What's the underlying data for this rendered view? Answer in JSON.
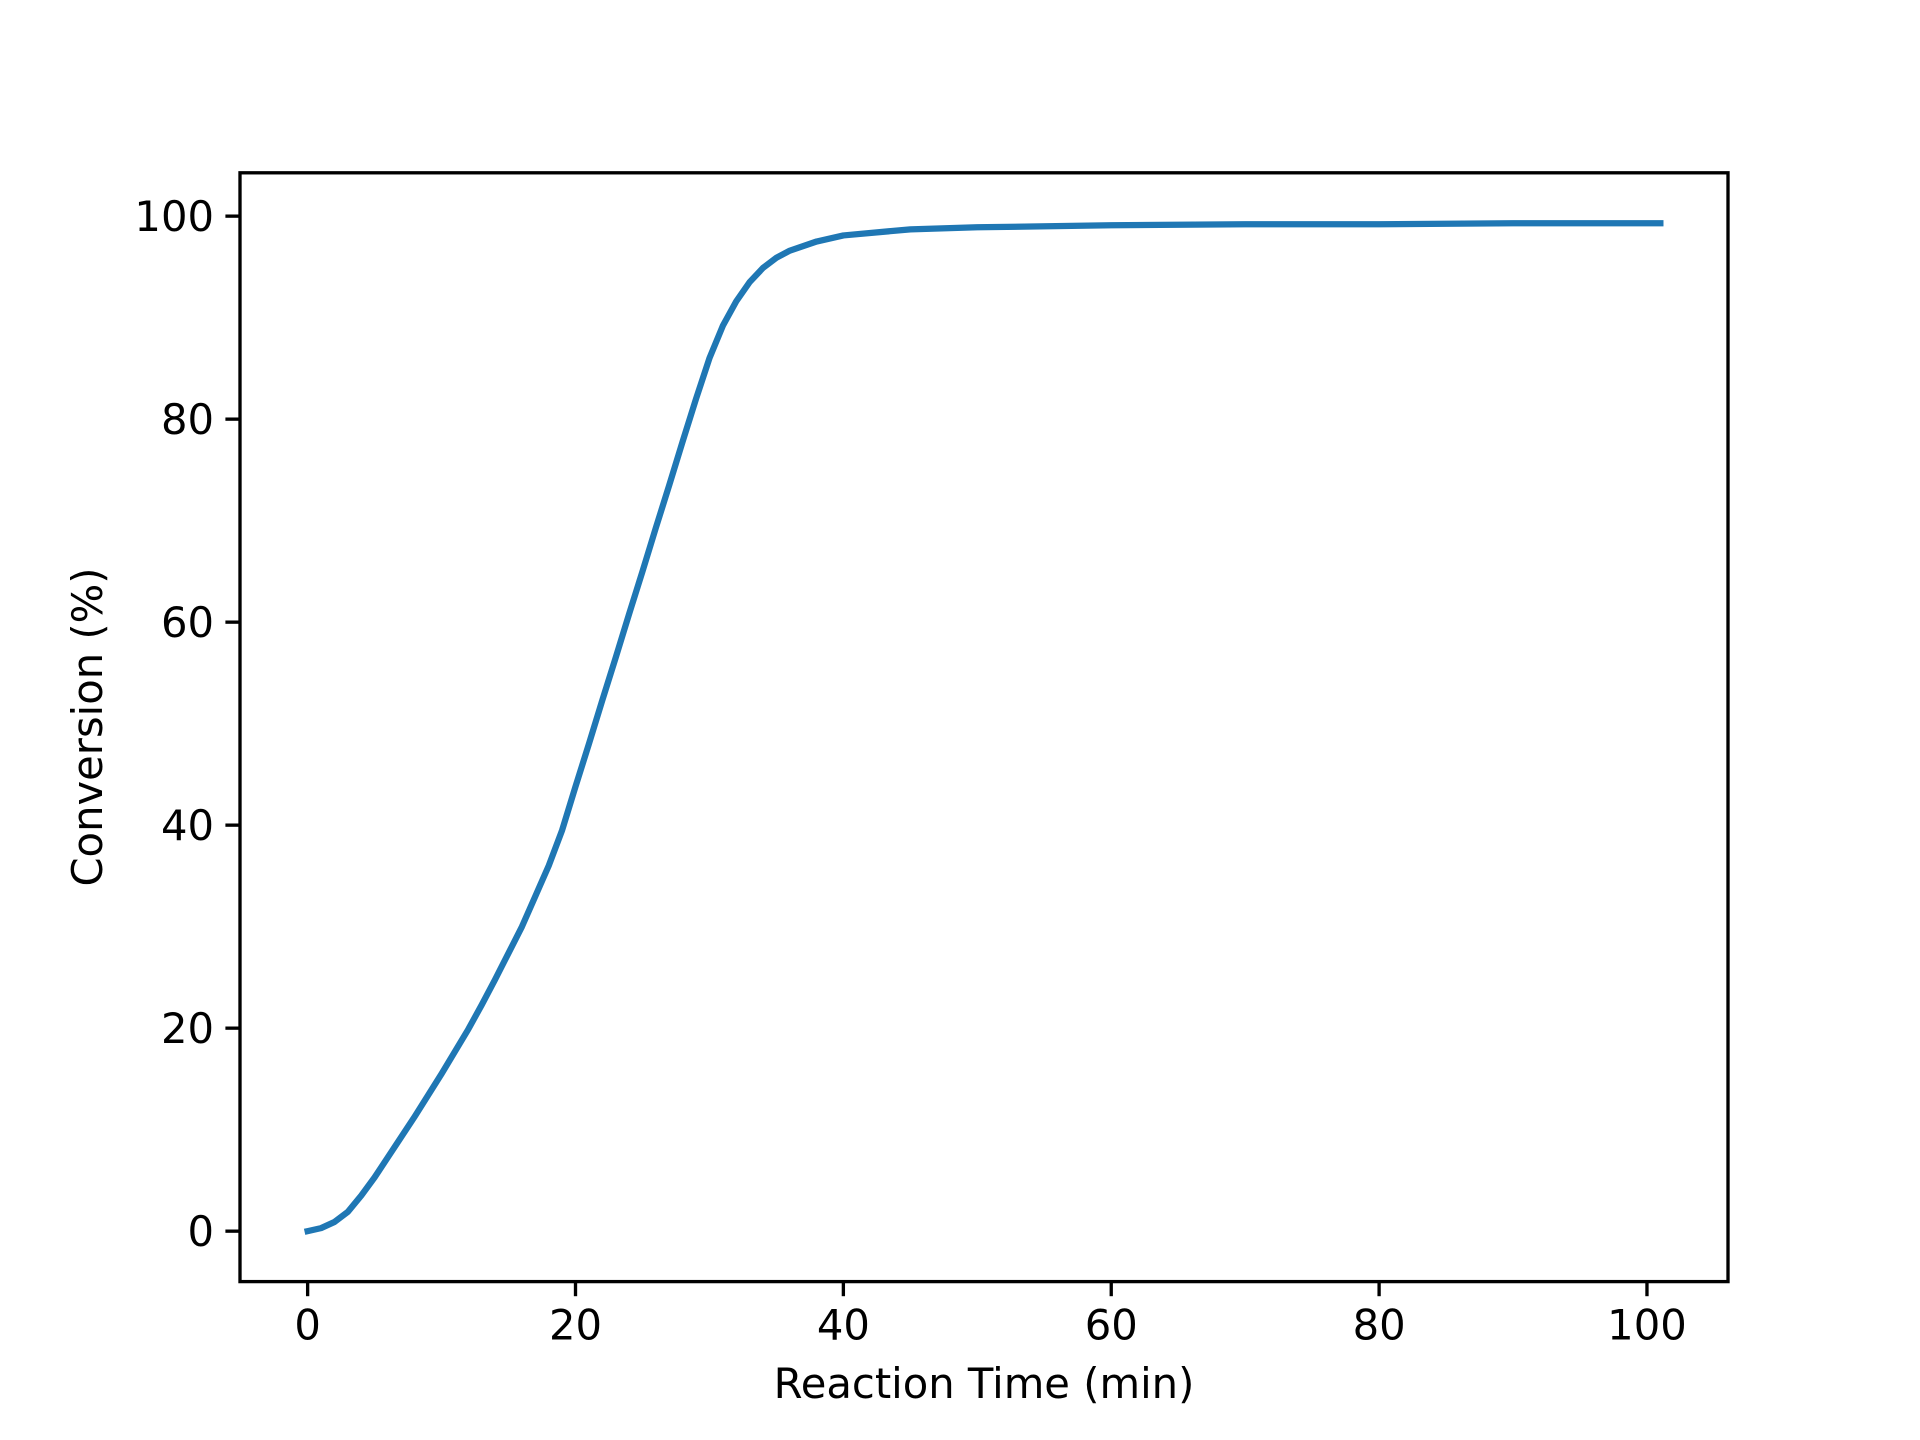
{
  "chart_data": {
    "type": "line",
    "x_label": "Reaction Time (min)",
    "y_label": "Conversion (%)",
    "x": [
      0,
      1,
      2,
      3,
      4,
      5,
      6,
      8,
      10,
      12,
      13,
      14,
      15,
      16,
      17,
      18,
      19,
      20,
      21,
      22,
      23,
      24,
      25,
      26,
      27,
      28,
      29,
      30,
      31,
      32,
      33,
      34,
      35,
      36,
      38,
      40,
      45,
      50,
      60,
      70,
      80,
      90,
      101
    ],
    "series": [
      {
        "name": "Conversion",
        "color": "#1f77b4",
        "values": [
          0,
          0.3,
          0.9,
          1.9,
          3.5,
          5.3,
          7.3,
          11.3,
          15.5,
          19.9,
          22.3,
          24.8,
          27.4,
          30,
          33,
          36,
          39.5,
          43.8,
          48,
          52.3,
          56.5,
          60.8,
          65,
          69.3,
          73.5,
          77.8,
          82,
          86,
          89.2,
          91.6,
          93.5,
          94.9,
          95.9,
          96.6,
          97.5,
          98.1,
          98.7,
          98.9,
          99.1,
          99.2,
          99.2,
          99.3,
          99.3
        ]
      }
    ],
    "xlim": [
      -5.05,
      106.05
    ],
    "ylim": [
      -4.97,
      104.27
    ],
    "xticks": [
      0,
      20,
      40,
      60,
      80,
      100
    ],
    "yticks": [
      0,
      20,
      40,
      60,
      80,
      100
    ]
  }
}
